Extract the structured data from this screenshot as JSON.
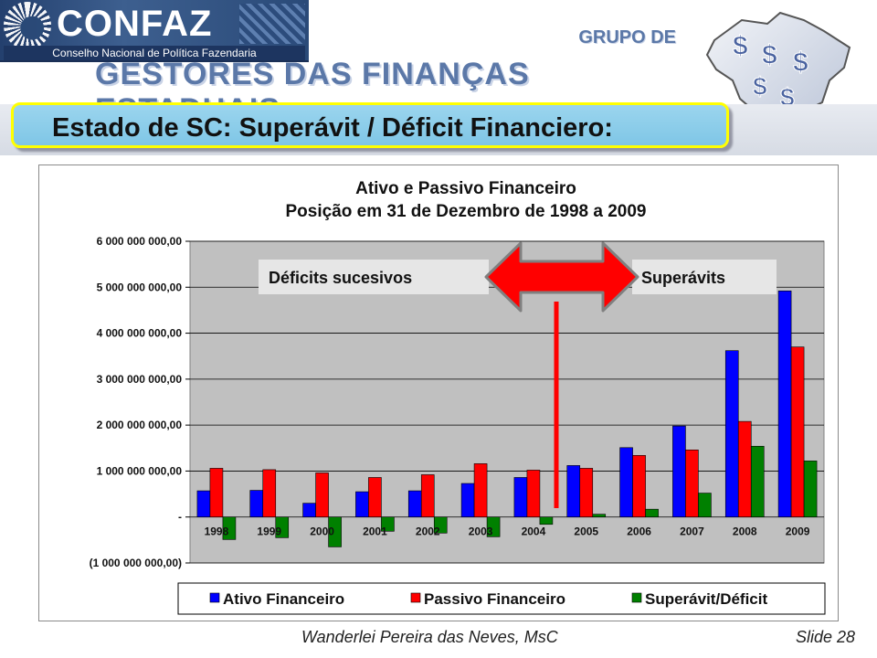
{
  "header": {
    "logo_name": "CONFAZ",
    "logo_subtitle": "Conselho Nacional de Política Fazendaria",
    "group_line1": "GRUPO DE",
    "group_line2": "GESTORES DAS FINANÇAS ESTADUAIS",
    "map_symbol": "$"
  },
  "slide_title": "Estado de SC: Superávit / Déficit   Financiero:",
  "chart_data": {
    "type": "bar",
    "title": "Ativo e Passivo Financeiro",
    "subtitle": "Posição em 31 de Dezembro de 1998 a 2009",
    "categories": [
      "1998",
      "1999",
      "2000",
      "2001",
      "2002",
      "2003",
      "2004",
      "2005",
      "2006",
      "2007",
      "2008",
      "2009"
    ],
    "series": [
      {
        "name": "Ativo Financeiro",
        "color": "#0000ff",
        "values": [
          570000000,
          580000000,
          300000000,
          550000000,
          570000000,
          730000000,
          860000000,
          1120000000,
          1510000000,
          1980000000,
          3620000000,
          4920000000
        ]
      },
      {
        "name": "Passivo Financeiro",
        "color": "#ff0000",
        "values": [
          1060000000,
          1030000000,
          960000000,
          860000000,
          920000000,
          1160000000,
          1020000000,
          1060000000,
          1340000000,
          1460000000,
          2080000000,
          3700000000
        ]
      },
      {
        "name": "Superávit/Déficit",
        "color": "#008000",
        "values": [
          -490000000,
          -450000000,
          -650000000,
          -310000000,
          -350000000,
          -430000000,
          -160000000,
          60000000,
          170000000,
          520000000,
          1540000000,
          1220000000
        ]
      }
    ],
    "ylim": [
      -1000000000,
      6000000000
    ],
    "yticks": [
      {
        "value": 6000000000,
        "label": "6 000 000 000,00"
      },
      {
        "value": 5000000000,
        "label": "5 000 000 000,00"
      },
      {
        "value": 4000000000,
        "label": "4 000 000 000,00"
      },
      {
        "value": 3000000000,
        "label": "3 000 000 000,00"
      },
      {
        "value": 2000000000,
        "label": "2 000 000 000,00"
      },
      {
        "value": 1000000000,
        "label": "1 000 000 000,00"
      },
      {
        "value": 0,
        "label": "-"
      },
      {
        "value": -1000000000,
        "label": "(1 000 000 000,00)"
      }
    ],
    "grid": true,
    "plot_background": "#c0c0c0",
    "legend_position": "bottom",
    "annotations": {
      "left_label": "Déficits sucesivos",
      "right_label": "Superávits",
      "arrow_color": "#ff0000"
    }
  },
  "footer": {
    "author": "Wanderlei Pereira das Neves, MsC",
    "slide_number": "Slide 28"
  }
}
